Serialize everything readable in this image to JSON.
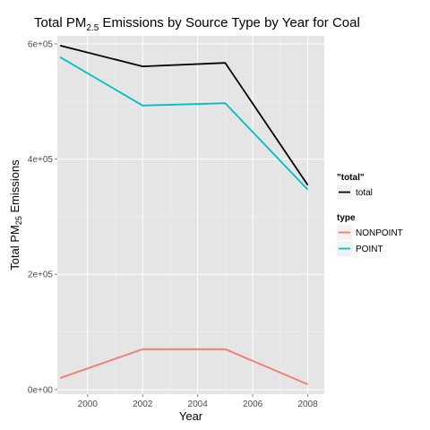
{
  "chart_data": {
    "type": "line",
    "title": {
      "prefix": "Total PM",
      "subscript": "2.5",
      "suffix": " Emissions by Source Type by Year for Coal"
    },
    "xlabel": "Year",
    "ylabel": {
      "prefix": "Total PM",
      "subscript": "25",
      "suffix": " Emissions"
    },
    "x": [
      1999,
      2002,
      2005,
      2008
    ],
    "xlim": [
      1998.9,
      2008.6
    ],
    "ylim": [
      -8000,
      614000
    ],
    "xticks": [
      {
        "value": 2000,
        "label": "2000"
      },
      {
        "value": 2002,
        "label": "2002"
      },
      {
        "value": 2004,
        "label": "2004"
      },
      {
        "value": 2006,
        "label": "2006"
      },
      {
        "value": 2008,
        "label": "2008"
      }
    ],
    "yticks": [
      {
        "value": 0,
        "label": "0e+00"
      },
      {
        "value": 200000,
        "label": "2e+05"
      },
      {
        "value": 400000,
        "label": "4e+05"
      },
      {
        "value": 600000,
        "label": "6e+05"
      }
    ],
    "series": [
      {
        "name": "total",
        "color": "#000000",
        "values": [
          597000,
          561000,
          567000,
          355000
        ]
      },
      {
        "name": "NONPOINT",
        "color": "#f8766d",
        "values": [
          20000,
          70000,
          70000,
          9000
        ]
      },
      {
        "name": "POINT",
        "color": "#00bfc4",
        "values": [
          577000,
          493000,
          497000,
          347000
        ]
      }
    ],
    "legends": [
      {
        "title": "\"total\"",
        "items": [
          {
            "label": "total",
            "color": "#000000"
          }
        ]
      },
      {
        "title": "type",
        "items": [
          {
            "label": "NONPOINT",
            "color": "#f8766d"
          },
          {
            "label": "POINT",
            "color": "#00bfc4"
          }
        ]
      }
    ],
    "panel_background": "#e5e5e5",
    "grid": true,
    "grid_color": "#ffffff",
    "legend_placement": "right"
  }
}
